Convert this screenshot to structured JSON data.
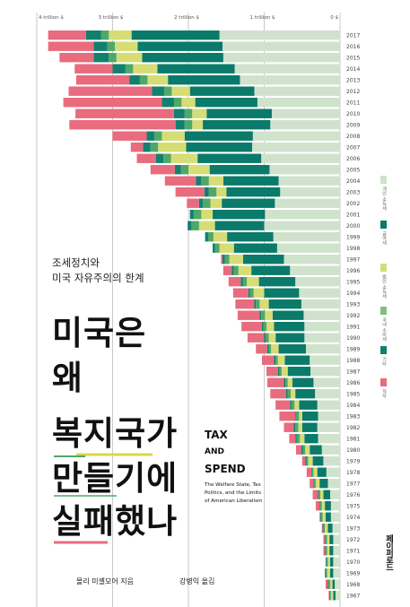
{
  "book": {
    "subtitle_line1": "조세정치와",
    "subtitle_line2": "미국 자유주의의 한계",
    "title_line1": "미국은",
    "title_line2": "왜",
    "title_line3": "복지국가",
    "title_line4": "만들기에",
    "title_line5": "실패했나",
    "english_title_1": "TAX",
    "english_title_and": "AND",
    "english_title_2": "SPEND",
    "english_subtitle": "The Welfare State, Tax Politics, and the Limits of American Liberalism",
    "author": "몰리 미셸모어 지음",
    "translator": "강병익 옮김",
    "publisher": "페이퍼로드"
  },
  "colors": {
    "red": "#e86b7e",
    "green_dark": "#0a7a6a",
    "green_mid": "#4fa86a",
    "yellow": "#d6dd74",
    "teal": "#12806e",
    "pale": "#cfe3cc",
    "divider": "#a6a6a6",
    "underline_yellow": "#d8d84a",
    "underline_green": "#4fa86a",
    "underline_red": "#e86b7e"
  },
  "legend": [
    {
      "label": "개인 소득세",
      "color": "#cfe3cc"
    },
    {
      "label": "급여세",
      "color": "#0a7a6a"
    },
    {
      "label": "법인 소득세",
      "color": "#d6dd74"
    },
    {
      "label": "국내 소비세",
      "color": "#7fbf80"
    },
    {
      "label": "기타",
      "color": "#12806e"
    },
    {
      "label": "적자",
      "color": "#e86b7e"
    }
  ],
  "chart_data": {
    "type": "bar",
    "xlabels": [
      "4 trillion $",
      "3 trillion $",
      "2 trillion $",
      "1 trillion $",
      "0 $"
    ],
    "x_ticks_trillion": [
      4,
      3,
      2,
      1,
      0
    ],
    "xlim": [
      0,
      4
    ],
    "unit": "trillion $",
    "series_names": [
      "개인 소득세",
      "급여세",
      "법인 소득세",
      "국내 소비세",
      "기타",
      "적자"
    ],
    "years": [
      2017,
      2016,
      2015,
      2014,
      2013,
      2012,
      2011,
      2010,
      2009,
      2008,
      2007,
      2006,
      2005,
      2004,
      2003,
      2002,
      2001,
      2000,
      1999,
      1998,
      1997,
      1996,
      1995,
      1994,
      1993,
      1992,
      1991,
      1990,
      1989,
      1988,
      1987,
      1986,
      1985,
      1984,
      1983,
      1982,
      1981,
      1980,
      1979,
      1978,
      1977,
      1976,
      1975,
      1974,
      1973,
      1972,
      1971,
      1970,
      1969,
      1968,
      1967
    ],
    "rows": [
      [
        1.59,
        1.16,
        0.3,
        0.1,
        0.2,
        0.5
      ],
      [
        1.55,
        1.12,
        0.3,
        0.1,
        0.18,
        0.6
      ],
      [
        1.54,
        1.07,
        0.34,
        0.1,
        0.2,
        0.45
      ],
      [
        1.39,
        1.02,
        0.32,
        0.1,
        0.17,
        0.5
      ],
      [
        1.32,
        0.95,
        0.27,
        0.1,
        0.14,
        0.7
      ],
      [
        1.13,
        0.85,
        0.24,
        0.1,
        0.16,
        1.1
      ],
      [
        1.09,
        0.82,
        0.18,
        0.1,
        0.16,
        1.3
      ],
      [
        0.9,
        0.86,
        0.19,
        0.1,
        0.14,
        1.3
      ],
      [
        0.92,
        0.89,
        0.14,
        0.1,
        0.12,
        1.4
      ],
      [
        1.15,
        0.9,
        0.3,
        0.1,
        0.1,
        0.45
      ],
      [
        1.16,
        0.87,
        0.37,
        0.1,
        0.1,
        0.16
      ],
      [
        1.04,
        0.84,
        0.35,
        0.1,
        0.1,
        0.25
      ],
      [
        0.93,
        0.79,
        0.28,
        0.1,
        0.08,
        0.32
      ],
      [
        0.81,
        0.73,
        0.19,
        0.1,
        0.07,
        0.41
      ],
      [
        0.79,
        0.71,
        0.13,
        0.1,
        0.06,
        0.38
      ],
      [
        0.86,
        0.7,
        0.15,
        0.1,
        0.05,
        0.16
      ],
      [
        0.99,
        0.69,
        0.15,
        0.1,
        0.05,
        0.0
      ],
      [
        1.0,
        0.65,
        0.21,
        0.1,
        0.05,
        0.0
      ],
      [
        0.88,
        0.61,
        0.18,
        0.07,
        0.04,
        0.0
      ],
      [
        0.83,
        0.57,
        0.19,
        0.06,
        0.03,
        0.0
      ],
      [
        0.74,
        0.54,
        0.18,
        0.06,
        0.03,
        0.02
      ],
      [
        0.66,
        0.51,
        0.17,
        0.06,
        0.03,
        0.11
      ],
      [
        0.59,
        0.48,
        0.16,
        0.05,
        0.03,
        0.16
      ],
      [
        0.54,
        0.46,
        0.14,
        0.05,
        0.02,
        0.2
      ],
      [
        0.51,
        0.43,
        0.12,
        0.05,
        0.02,
        0.25
      ],
      [
        0.48,
        0.41,
        0.1,
        0.05,
        0.02,
        0.29
      ],
      [
        0.47,
        0.4,
        0.1,
        0.04,
        0.02,
        0.27
      ],
      [
        0.47,
        0.38,
        0.09,
        0.04,
        0.02,
        0.22
      ],
      [
        0.45,
        0.36,
        0.1,
        0.03,
        0.02,
        0.15
      ],
      [
        0.4,
        0.33,
        0.09,
        0.03,
        0.02,
        0.16
      ],
      [
        0.39,
        0.3,
        0.08,
        0.03,
        0.02,
        0.15
      ],
      [
        0.35,
        0.28,
        0.06,
        0.03,
        0.02,
        0.22
      ],
      [
        0.33,
        0.26,
        0.06,
        0.04,
        0.02,
        0.21
      ],
      [
        0.3,
        0.24,
        0.06,
        0.04,
        0.02,
        0.19
      ],
      [
        0.29,
        0.21,
        0.04,
        0.04,
        0.01,
        0.21
      ],
      [
        0.3,
        0.2,
        0.05,
        0.04,
        0.02,
        0.13
      ],
      [
        0.29,
        0.18,
        0.06,
        0.04,
        0.02,
        0.08
      ],
      [
        0.24,
        0.16,
        0.06,
        0.03,
        0.02,
        0.07
      ],
      [
        0.22,
        0.14,
        0.06,
        0.02,
        0.02,
        0.04
      ],
      [
        0.18,
        0.12,
        0.05,
        0.02,
        0.01,
        0.06
      ],
      [
        0.16,
        0.11,
        0.05,
        0.02,
        0.01,
        0.05
      ],
      [
        0.13,
        0.09,
        0.04,
        0.02,
        0.01,
        0.07
      ],
      [
        0.12,
        0.08,
        0.04,
        0.02,
        0.01,
        0.05
      ],
      [
        0.12,
        0.07,
        0.04,
        0.02,
        0.01,
        0.01
      ],
      [
        0.1,
        0.06,
        0.04,
        0.02,
        0.01,
        0.01
      ],
      [
        0.09,
        0.05,
        0.03,
        0.02,
        0.01,
        0.02
      ],
      [
        0.09,
        0.05,
        0.03,
        0.02,
        0.01,
        0.02
      ],
      [
        0.09,
        0.04,
        0.03,
        0.02,
        0.01,
        0.0
      ],
      [
        0.09,
        0.04,
        0.04,
        0.02,
        0.01,
        0.0
      ],
      [
        0.07,
        0.03,
        0.03,
        0.02,
        0.01,
        0.03
      ],
      [
        0.06,
        0.03,
        0.03,
        0.01,
        0.01,
        0.01
      ]
    ]
  }
}
